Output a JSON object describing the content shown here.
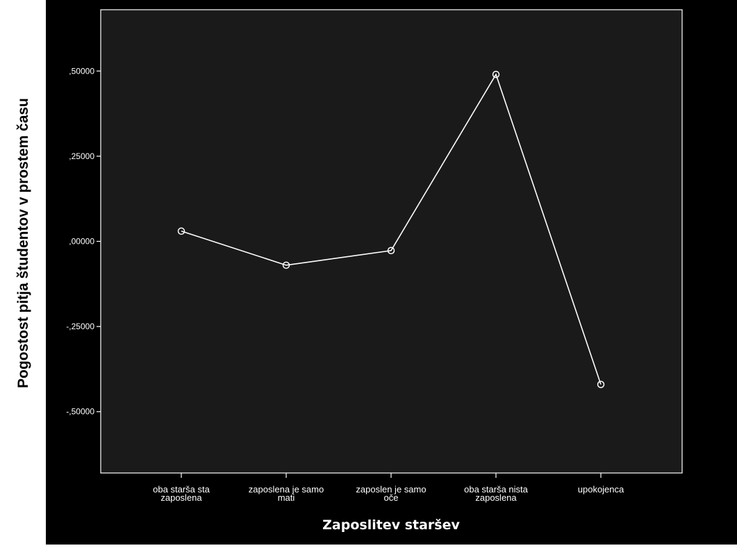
{
  "chart_data": {
    "type": "line",
    "title": "",
    "xlabel": "Zaposlitev staršev",
    "ylabel": "Pogostost pitja študentov v prostem času",
    "categories": [
      [
        "oba starša sta",
        "zaposlena"
      ],
      [
        "zaposlena je samo",
        "mati"
      ],
      [
        "zaposlen je samo",
        "oče"
      ],
      [
        "oba starša nista",
        "zaposlena"
      ],
      [
        "upokojenca"
      ]
    ],
    "series": [
      {
        "values": [
          0.03,
          -0.07,
          -0.027,
          0.49,
          -0.42
        ]
      }
    ],
    "ylim": [
      -0.68,
      0.68
    ],
    "yticks": [
      0.5,
      0.25,
      0.0,
      -0.25,
      -0.5
    ],
    "ytick_labels": [
      ",50000",
      ",25000",
      ",00000",
      "-,25000",
      "-,50000"
    ],
    "grid": false,
    "legend": false
  },
  "colors": {
    "page_background": "#ffffff",
    "outer_background": "#000000",
    "plot_background": "#1a1a1a",
    "axis_color": "#ffffff",
    "line_color": "#ffffff",
    "text_color": "#ffffff",
    "ylabel_color": "#000000"
  }
}
